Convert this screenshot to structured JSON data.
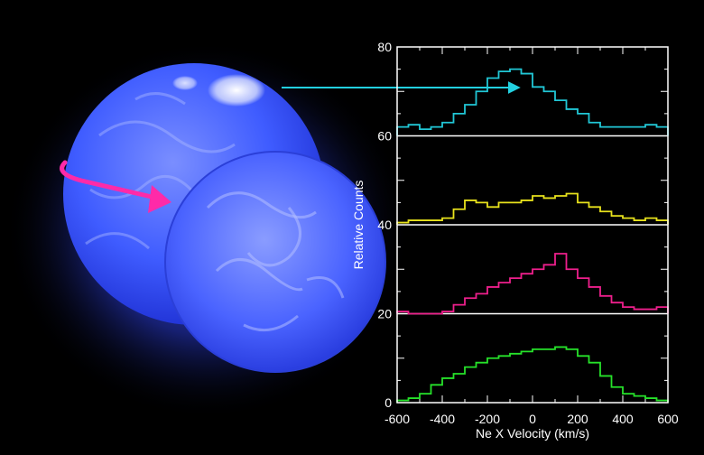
{
  "colors": {
    "background": "#000000",
    "star": "#3a56ff",
    "rotation_arrow": "#ff2aa8",
    "pointer_arrow": "#22d0e0",
    "axes": "#ffffff"
  },
  "chart_data": {
    "type": "line",
    "step": true,
    "title": "",
    "xlabel": "Ne X Velocity  (km/s)",
    "ylabel": "Relative Counts",
    "xlim": [
      -600,
      600
    ],
    "ylim": [
      0,
      80
    ],
    "x_ticks": [
      -600,
      -400,
      -200,
      0,
      200,
      400,
      600
    ],
    "y_ticks": [
      0,
      20,
      40,
      60,
      80
    ],
    "bin_edges": [
      -600,
      -550,
      -500,
      -450,
      -400,
      -350,
      -300,
      -250,
      -200,
      -150,
      -100,
      -50,
      0,
      50,
      100,
      150,
      200,
      250,
      300,
      350,
      400,
      450,
      500,
      550,
      600
    ],
    "grid": false,
    "series": [
      {
        "color": "#21c7d6",
        "offset": 60,
        "values": [
          62,
          62.5,
          61.5,
          62,
          63,
          65,
          67,
          70,
          73,
          74.5,
          75,
          74,
          71,
          70,
          68,
          66,
          65,
          63,
          62,
          62,
          62,
          62,
          62.5,
          62
        ]
      },
      {
        "color": "#e8e21c",
        "offset": 40,
        "values": [
          40.5,
          41,
          41,
          41,
          41.5,
          43.5,
          45.5,
          45,
          44,
          45,
          45,
          45.5,
          46.5,
          46,
          46.5,
          47,
          45,
          44,
          43,
          42,
          41.5,
          41,
          41.5,
          41
        ]
      },
      {
        "color": "#ee1f8c",
        "offset": 20,
        "values": [
          20.5,
          20,
          20,
          20,
          20.5,
          22,
          23.5,
          24.5,
          26,
          27,
          28,
          29,
          30,
          31,
          33.5,
          30,
          28,
          26,
          24,
          22.5,
          21.5,
          21,
          21,
          21.5
        ]
      },
      {
        "color": "#26e22a",
        "offset": 0,
        "values": [
          0.5,
          1,
          2,
          4,
          5.5,
          6.5,
          8,
          9,
          10,
          10.5,
          11,
          11.5,
          12,
          12,
          12.5,
          12,
          10.5,
          9,
          6,
          3.5,
          2,
          1.5,
          1,
          0.5
        ]
      }
    ]
  }
}
